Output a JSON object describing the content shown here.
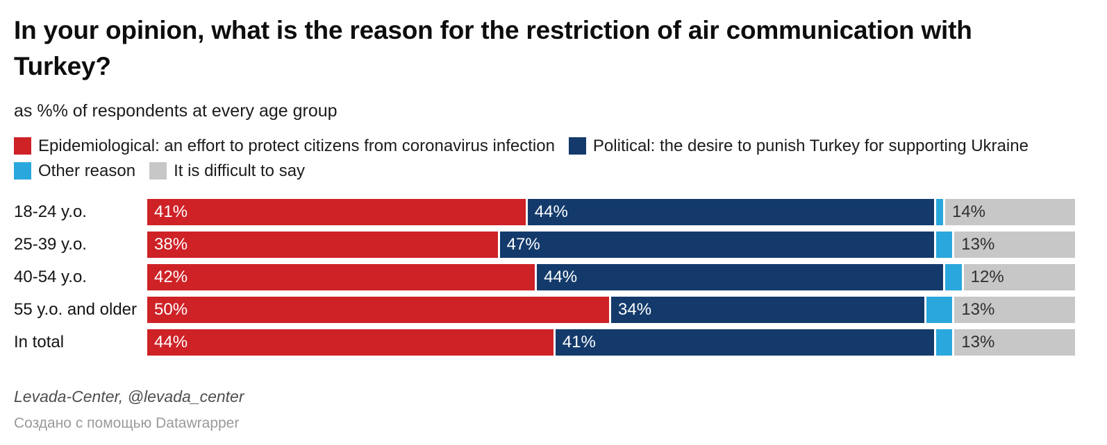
{
  "header": {
    "title": "In your opinion, what is the reason for the restriction of air communication with Turkey?",
    "subtitle": "as %% of respondents at every age group"
  },
  "chart_data": {
    "type": "bar",
    "orientation": "horizontal",
    "stacked": true,
    "title": "In your opinion, what is the reason for the restriction of air communication with Turkey?",
    "subtitle": "as %% of respondents at every age group",
    "categories": [
      "18-24 y.o.",
      "25-39 y.o.",
      "40-54 y.o.",
      "55 y.o. and older",
      "In total"
    ],
    "series": [
      {
        "name": "Epidemiological: an effort to protect citizens from coronavirus infection",
        "color": "#ce2227",
        "label_color": "#ffffff",
        "show_labels": true,
        "values": [
          41,
          38,
          42,
          50,
          44
        ]
      },
      {
        "name": "Political: the desire to punish Turkey for supporting Ukraine",
        "color": "#133a6b",
        "label_color": "#ffffff",
        "show_labels": true,
        "values": [
          44,
          47,
          44,
          34,
          41
        ]
      },
      {
        "name": "Other reason",
        "color": "#2aa7dc",
        "label_color": "#ffffff",
        "show_labels": false,
        "values": [
          1,
          2,
          2,
          3,
          2
        ]
      },
      {
        "name": "It is difficult to say",
        "color": "#c7c7c7",
        "label_color": "#2e2e2e",
        "show_labels": true,
        "values": [
          14,
          13,
          12,
          13,
          13
        ]
      }
    ],
    "value_suffix": "%",
    "xlim": [
      0,
      100
    ],
    "legend_position": "top",
    "grid": false
  },
  "footer": {
    "source": "Levada-Center, @levada_center",
    "attribution": "Создано с помощью Datawrapper"
  }
}
